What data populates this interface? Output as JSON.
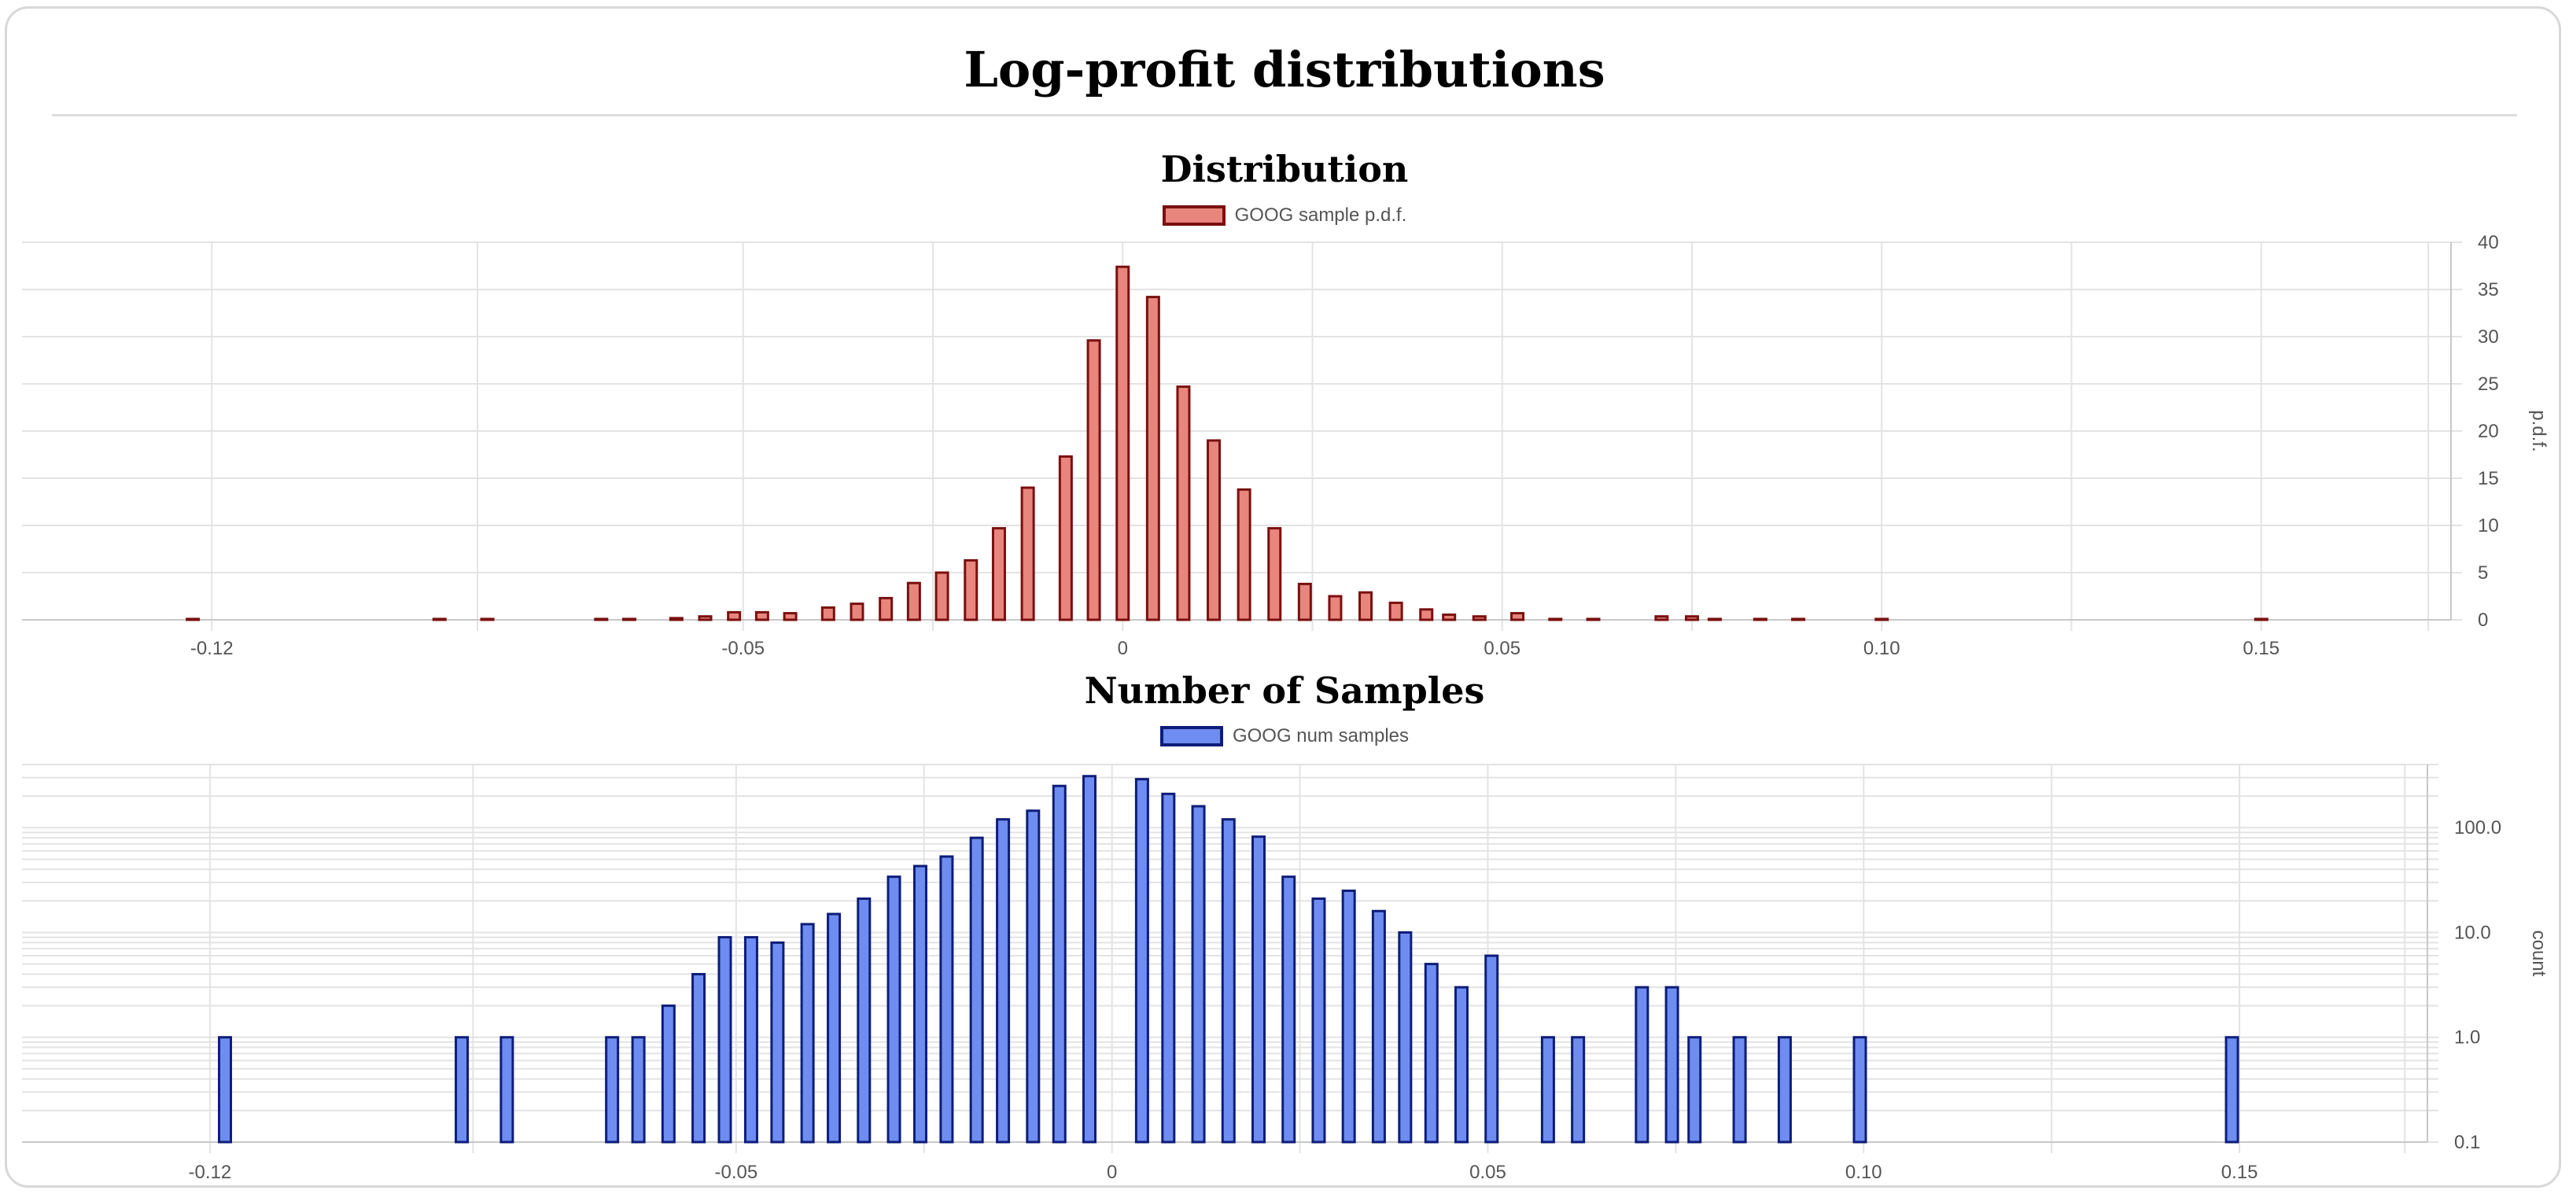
{
  "page": {
    "title": "Log-profit distributions"
  },
  "colors": {
    "pdf_fill": "#e8857d",
    "pdf_border": "#7a1010",
    "count_fill": "#6f8df0",
    "count_border": "#0d1d78",
    "grid": "#e3e3e3",
    "axis": "#c8c8c8"
  },
  "chart_data": [
    {
      "type": "bar",
      "title": "Distribution",
      "legend_placement": "top-center",
      "series": [
        {
          "name": "GOOG sample p.d.f."
        }
      ],
      "ylabel": "p.d.f.",
      "ylim": [
        0,
        40
      ],
      "xlim": [
        -0.145,
        0.175
      ],
      "yticks": [
        0,
        5,
        10,
        15,
        20,
        25,
        30,
        35,
        40
      ],
      "xticks": [
        -0.12,
        -0.05,
        0,
        0.05,
        0.1,
        0.15
      ],
      "xtick_labels": [
        "-0.12",
        "-0.05",
        "0",
        "0.05",
        "0.10",
        "0.15"
      ],
      "grid": true,
      "points": [
        [
          -0.1225,
          0.09
        ],
        [
          -0.09,
          0.09
        ],
        [
          -0.0837,
          0.09
        ],
        [
          -0.0687,
          0.09
        ],
        [
          -0.065,
          0.09
        ],
        [
          -0.0588,
          0.18
        ],
        [
          -0.055,
          0.36
        ],
        [
          -0.0512,
          0.8
        ],
        [
          -0.0475,
          0.8
        ],
        [
          -0.0438,
          0.7
        ],
        [
          -0.0388,
          1.3
        ],
        [
          -0.035,
          1.7
        ],
        [
          -0.0312,
          2.3
        ],
        [
          -0.0275,
          3.9
        ],
        [
          -0.0238,
          5.0
        ],
        [
          -0.02,
          6.3
        ],
        [
          -0.0163,
          9.7
        ],
        [
          -0.0125,
          14.0
        ],
        [
          -0.0075,
          17.3
        ],
        [
          -0.0038,
          29.6
        ],
        [
          0.0,
          37.4
        ],
        [
          0.004,
          34.2
        ],
        [
          0.008,
          24.7
        ],
        [
          0.012,
          19.0
        ],
        [
          0.016,
          13.8
        ],
        [
          0.02,
          9.7
        ],
        [
          0.024,
          3.8
        ],
        [
          0.028,
          2.5
        ],
        [
          0.032,
          2.9
        ],
        [
          0.036,
          1.8
        ],
        [
          0.04,
          1.1
        ],
        [
          0.043,
          0.54
        ],
        [
          0.047,
          0.36
        ],
        [
          0.052,
          0.7
        ],
        [
          0.057,
          0.09
        ],
        [
          0.062,
          0.09
        ],
        [
          0.071,
          0.36
        ],
        [
          0.075,
          0.36
        ],
        [
          0.078,
          0.09
        ],
        [
          0.084,
          0.09
        ],
        [
          0.089,
          0.09
        ],
        [
          0.1,
          0.09
        ],
        [
          0.15,
          0.09
        ]
      ]
    },
    {
      "type": "bar",
      "title": "Number of Samples",
      "legend_placement": "top-center",
      "series": [
        {
          "name": "GOOG num samples"
        }
      ],
      "ylabel": "count",
      "yscale": "log",
      "ylim": [
        0.1,
        400
      ],
      "xlim": [
        -0.145,
        0.175
      ],
      "yticks": [
        0.1,
        1.0,
        10.0,
        100.0
      ],
      "ytick_labels": [
        "0.1",
        "1.0",
        "10.0",
        "100.0"
      ],
      "xticks": [
        -0.12,
        -0.05,
        0,
        0.05,
        0.1,
        0.15
      ],
      "xtick_labels": [
        "-0.12",
        "-0.05",
        "0",
        "0.05",
        "0.10",
        "0.15"
      ],
      "grid": true,
      "points": [
        [
          -0.118,
          1
        ],
        [
          -0.0865,
          1
        ],
        [
          -0.0805,
          1
        ],
        [
          -0.0665,
          1
        ],
        [
          -0.063,
          1
        ],
        [
          -0.059,
          2
        ],
        [
          -0.055,
          4
        ],
        [
          -0.0515,
          9
        ],
        [
          -0.048,
          9
        ],
        [
          -0.0445,
          8
        ],
        [
          -0.0405,
          12
        ],
        [
          -0.037,
          15
        ],
        [
          -0.033,
          21
        ],
        [
          -0.029,
          34
        ],
        [
          -0.0255,
          43
        ],
        [
          -0.022,
          53
        ],
        [
          -0.018,
          80
        ],
        [
          -0.0145,
          120
        ],
        [
          -0.0105,
          145
        ],
        [
          -0.007,
          250
        ],
        [
          -0.003,
          310
        ],
        [
          0.004,
          290
        ],
        [
          0.0075,
          210
        ],
        [
          0.0115,
          160
        ],
        [
          0.0155,
          120
        ],
        [
          0.0195,
          82
        ],
        [
          0.0235,
          34
        ],
        [
          0.0275,
          21
        ],
        [
          0.0315,
          25
        ],
        [
          0.0355,
          16
        ],
        [
          0.039,
          10
        ],
        [
          0.0425,
          5
        ],
        [
          0.0465,
          3
        ],
        [
          0.0505,
          6
        ],
        [
          0.058,
          1
        ],
        [
          0.062,
          1
        ],
        [
          0.0705,
          3
        ],
        [
          0.0745,
          3
        ],
        [
          0.0775,
          1
        ],
        [
          0.0835,
          1
        ],
        [
          0.0895,
          1
        ],
        [
          0.0995,
          1
        ],
        [
          0.149,
          1
        ]
      ]
    }
  ]
}
